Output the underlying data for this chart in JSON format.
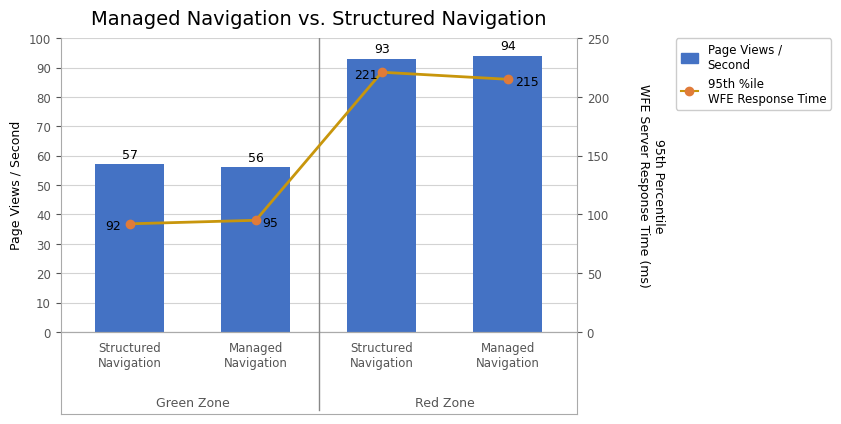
{
  "title": "Managed Navigation vs. Structured Navigation",
  "categories": [
    "Structured\nNavigation",
    "Managed\nNavigation",
    "Structured\nNavigation",
    "Managed\nNavigation"
  ],
  "zone_labels": [
    "Green Zone",
    "Red Zone"
  ],
  "bar_values": [
    57,
    56,
    93,
    94
  ],
  "line_values": [
    92,
    95,
    221,
    215
  ],
  "bar_color": "#4472C4",
  "line_color": "#C8960C",
  "marker_color": "#E07B39",
  "ylabel_left": "Page Views / Second",
  "ylabel_right": "95th Percentile\nWFE Server Response Time (ms)",
  "ylim_left": [
    0,
    100
  ],
  "ylim_right": [
    0,
    250
  ],
  "yticks_left": [
    0,
    10,
    20,
    30,
    40,
    50,
    60,
    70,
    80,
    90,
    100
  ],
  "yticks_right": [
    0,
    50,
    100,
    150,
    200,
    250
  ],
  "legend_bar_label": "Page Views /\nSecond",
  "legend_line_label": "95th %ile\nWFE Response Time",
  "background_color": "#FFFFFF",
  "grid_color": "#D3D3D3",
  "title_fontsize": 14,
  "label_fontsize": 9,
  "tick_fontsize": 8.5,
  "annotation_fontsize": 9,
  "zone_fontsize": 9
}
